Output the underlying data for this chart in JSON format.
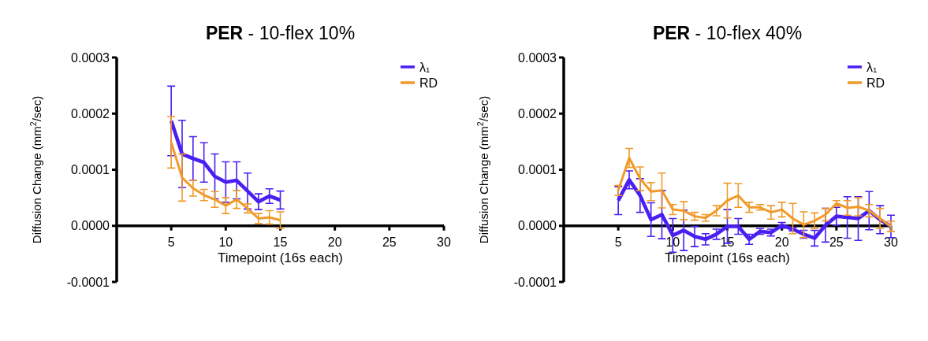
{
  "chart_data": [
    {
      "type": "line",
      "title": "PER - 10-flex 10%",
      "xlabel": "Timepoint (16s each)",
      "ylabel": "Diffusion Change (mm$^{2}$/sec)",
      "x": [
        5,
        6,
        7,
        8,
        9,
        10,
        11,
        12,
        13,
        14,
        15
      ],
      "series": [
        {
          "name": "λ₁",
          "color": "#4a1ff2",
          "values": [
            0.000187,
            0.000128,
            0.00012,
            0.000113,
            8.8e-05,
            7.8e-05,
            8.1e-05,
            6.2e-05,
            4.3e-05,
            5.3e-05,
            4.6e-05
          ],
          "errors": [
            6.2e-05,
            6e-05,
            3.9e-05,
            3.5e-05,
            4e-05,
            3.6e-05,
            3.3e-05,
            3.2e-05,
            1.4e-05,
            1.3e-05,
            1.6e-05
          ]
        },
        {
          "name": "RD",
          "color": "#f09a2a",
          "values": [
            0.000149,
            8.6e-05,
            6.7e-05,
            5.5e-05,
            4.7e-05,
            3.6e-05,
            4.7e-05,
            3.1e-05,
            1.3e-05,
            1.5e-05,
            1e-05
          ],
          "errors": [
            4.6e-05,
            4.2e-05,
            1.4e-05,
            1e-05,
            1.4e-05,
            1.4e-05,
            1.6e-05,
            8e-06,
            9e-06,
            1.2e-05,
            1.5e-05
          ]
        }
      ],
      "xlim": [
        0,
        30
      ],
      "xticks": [
        5,
        10,
        15,
        20,
        25,
        30
      ],
      "ylim": [
        -0.0001,
        0.0003
      ],
      "yticks": [
        {
          "value": -0.0001,
          "label": "-0.0001"
        },
        {
          "value": 0,
          "label": "0.0000"
        },
        {
          "value": 0.0001,
          "label": "0.0001"
        },
        {
          "value": 0.0002,
          "label": "0.0002"
        },
        {
          "value": 0.0003,
          "label": "0.0003"
        }
      ],
      "legend": "top right",
      "grid": false,
      "marker": "none",
      "line_style": "solid"
    },
    {
      "type": "line",
      "title": "PER - 10-flex 40%",
      "xlabel": "Timepoint (16s each)",
      "ylabel": "Diffusion Change (mm$^{2}$/sec)",
      "x": [
        5,
        6,
        7,
        8,
        9,
        10,
        11,
        12,
        13,
        14,
        15,
        16,
        17,
        18,
        19,
        20,
        21,
        22,
        23,
        24,
        25,
        26,
        27,
        28,
        29,
        30
      ],
      "series": [
        {
          "name": "λ₁",
          "color": "#4a1ff2",
          "values": [
            4.5e-05,
            8.2e-05,
            5.4e-05,
            1.1e-05,
            2e-05,
            -1.7e-05,
            -8e-06,
            -1.9e-05,
            -2.4e-05,
            -1.5e-05,
            -1e-06,
            -1e-06,
            -2.4e-05,
            -1e-05,
            -1.2e-05,
            1e-06,
            -6e-06,
            -1.5e-05,
            -2.2e-05,
            1e-06,
            1.7e-05,
            1.5e-05,
            1.3e-05,
            2.7e-05,
            1.1e-05,
            -1e-06
          ],
          "errors": [
            2.5e-05,
            1.6e-05,
            3e-05,
            3e-05,
            4.3e-05,
            3e-05,
            3.6e-05,
            1.8e-05,
            1e-05,
            9e-06,
            3e-05,
            1.4e-05,
            9e-06,
            5e-06,
            6e-06,
            5e-06,
            3e-06,
            7e-06,
            1.4e-05,
            3e-05,
            1.6e-05,
            3.7e-05,
            3.9e-05,
            3.4e-05,
            2.5e-05,
            2e-05
          ]
        },
        {
          "name": "RD",
          "color": "#f09a2a",
          "values": [
            6.3e-05,
            0.000121,
            8.4e-05,
            6.1e-05,
            6.3e-05,
            2.9e-05,
            2.7e-05,
            1.7e-05,
            1.4e-05,
            2.7e-05,
            4.5e-05,
            5.4e-05,
            3.3e-05,
            3.3e-05,
            2.4e-05,
            2.9e-05,
            1.3e-05,
            2e-06,
            9e-06,
            2e-05,
            4e-05,
            3.2e-05,
            3.4e-05,
            2.7e-05,
            1.3e-05,
            -1e-06
          ],
          "errors": [
            9e-06,
            1.7e-05,
            2.1e-05,
            1.6e-05,
            3.1e-05,
            9e-06,
            1.6e-05,
            7e-06,
            6e-06,
            9e-06,
            3.1e-05,
            2.1e-05,
            9e-06,
            5e-06,
            1.2e-05,
            1.3e-05,
            2.7e-05,
            2.3e-05,
            1.4e-05,
            1.1e-05,
            5e-06,
            1.3e-05,
            1.6e-05,
            1.1e-05,
            1.8e-05,
            9e-06
          ]
        }
      ],
      "xlim": [
        0,
        30
      ],
      "xticks": [
        5,
        10,
        15,
        20,
        25,
        30
      ],
      "ylim": [
        -0.0001,
        0.0003
      ],
      "yticks": [
        {
          "value": -0.0001,
          "label": "-0.0001"
        },
        {
          "value": 0,
          "label": "0.0000"
        },
        {
          "value": 0.0001,
          "label": "0.0001"
        },
        {
          "value": 0.0002,
          "label": "0.0002"
        },
        {
          "value": 0.0003,
          "label": "0.0003"
        }
      ],
      "legend": "top right",
      "grid": false,
      "marker": "none",
      "line_style": "solid"
    }
  ]
}
